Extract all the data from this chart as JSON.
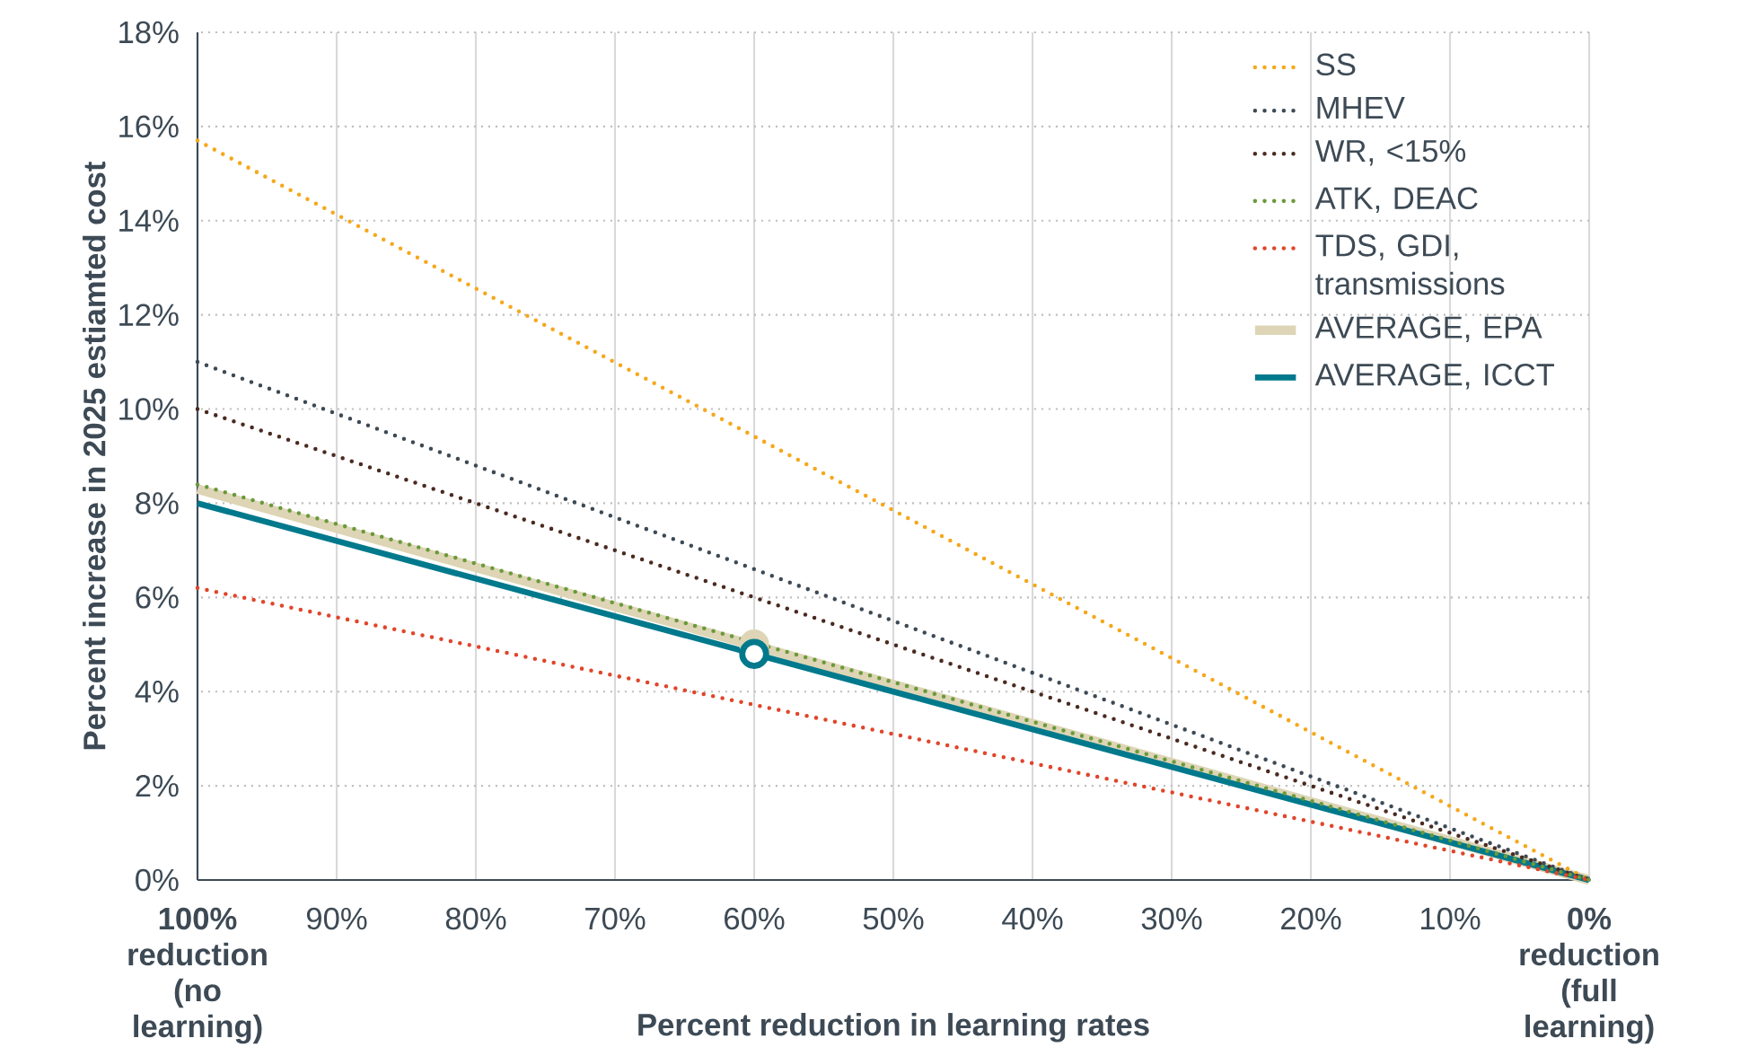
{
  "chart_data": {
    "type": "line",
    "xlabel": "Percent reduction in learning rates",
    "ylabel": "Percent increase in 2025 estiamted cost",
    "xlim": [
      100,
      0
    ],
    "xticks": [
      {
        "value": 100,
        "label": "100% reduction (no learning)"
      },
      {
        "value": 90,
        "label": "90%"
      },
      {
        "value": 80,
        "label": "80%"
      },
      {
        "value": 70,
        "label": "70%"
      },
      {
        "value": 60,
        "label": "60%"
      },
      {
        "value": 50,
        "label": "50%"
      },
      {
        "value": 40,
        "label": "40%"
      },
      {
        "value": 30,
        "label": "30%"
      },
      {
        "value": 20,
        "label": "20%"
      },
      {
        "value": 10,
        "label": "10%"
      },
      {
        "value": 0,
        "label": "0% reduction (full learning)"
      }
    ],
    "ylim": [
      0,
      18
    ],
    "yticks": [
      {
        "value": 0,
        "label": "0%"
      },
      {
        "value": 2,
        "label": "2%"
      },
      {
        "value": 4,
        "label": "4%"
      },
      {
        "value": 6,
        "label": "6%"
      },
      {
        "value": 8,
        "label": "8%"
      },
      {
        "value": 10,
        "label": "10%"
      },
      {
        "value": 12,
        "label": "12%"
      },
      {
        "value": 14,
        "label": "14%"
      },
      {
        "value": 16,
        "label": "16%"
      },
      {
        "value": 18,
        "label": "18%"
      }
    ],
    "grid": true,
    "legend": "top right",
    "x": [
      100,
      0
    ],
    "series": [
      {
        "name": "SS",
        "color": "#f5a81c",
        "line_style": "dotted",
        "values": [
          15.7,
          0
        ]
      },
      {
        "name": "MHEV",
        "color": "#3d4a55",
        "line_style": "dotted",
        "values": [
          11.0,
          0
        ]
      },
      {
        "name": "WR, <15%",
        "color": "#4a2a20",
        "line_style": "dotted",
        "values": [
          10.0,
          0
        ]
      },
      {
        "name": "ATK, DEAC",
        "color": "#6a9a3a",
        "line_style": "dotted",
        "values": [
          8.4,
          0
        ]
      },
      {
        "name": "TDS, GDI, transmissions",
        "color": "#e0452a",
        "line_style": "dotted",
        "values": [
          6.2,
          0
        ]
      },
      {
        "name": "AVERAGE, EPA",
        "color": "#ddd5b5",
        "line_style": "solid",
        "values": [
          8.3,
          0
        ]
      },
      {
        "name": "AVERAGE, ICCT",
        "color": "#00798c",
        "line_style": "solid",
        "values": [
          8.0,
          0
        ]
      },
      {
        "type": "scatter",
        "color": "#ddd5b5",
        "x": [
          60
        ],
        "values": [
          5.0
        ]
      },
      {
        "type": "scatter",
        "color": "#00798c",
        "x": [
          60
        ],
        "values": [
          4.8
        ]
      }
    ]
  }
}
